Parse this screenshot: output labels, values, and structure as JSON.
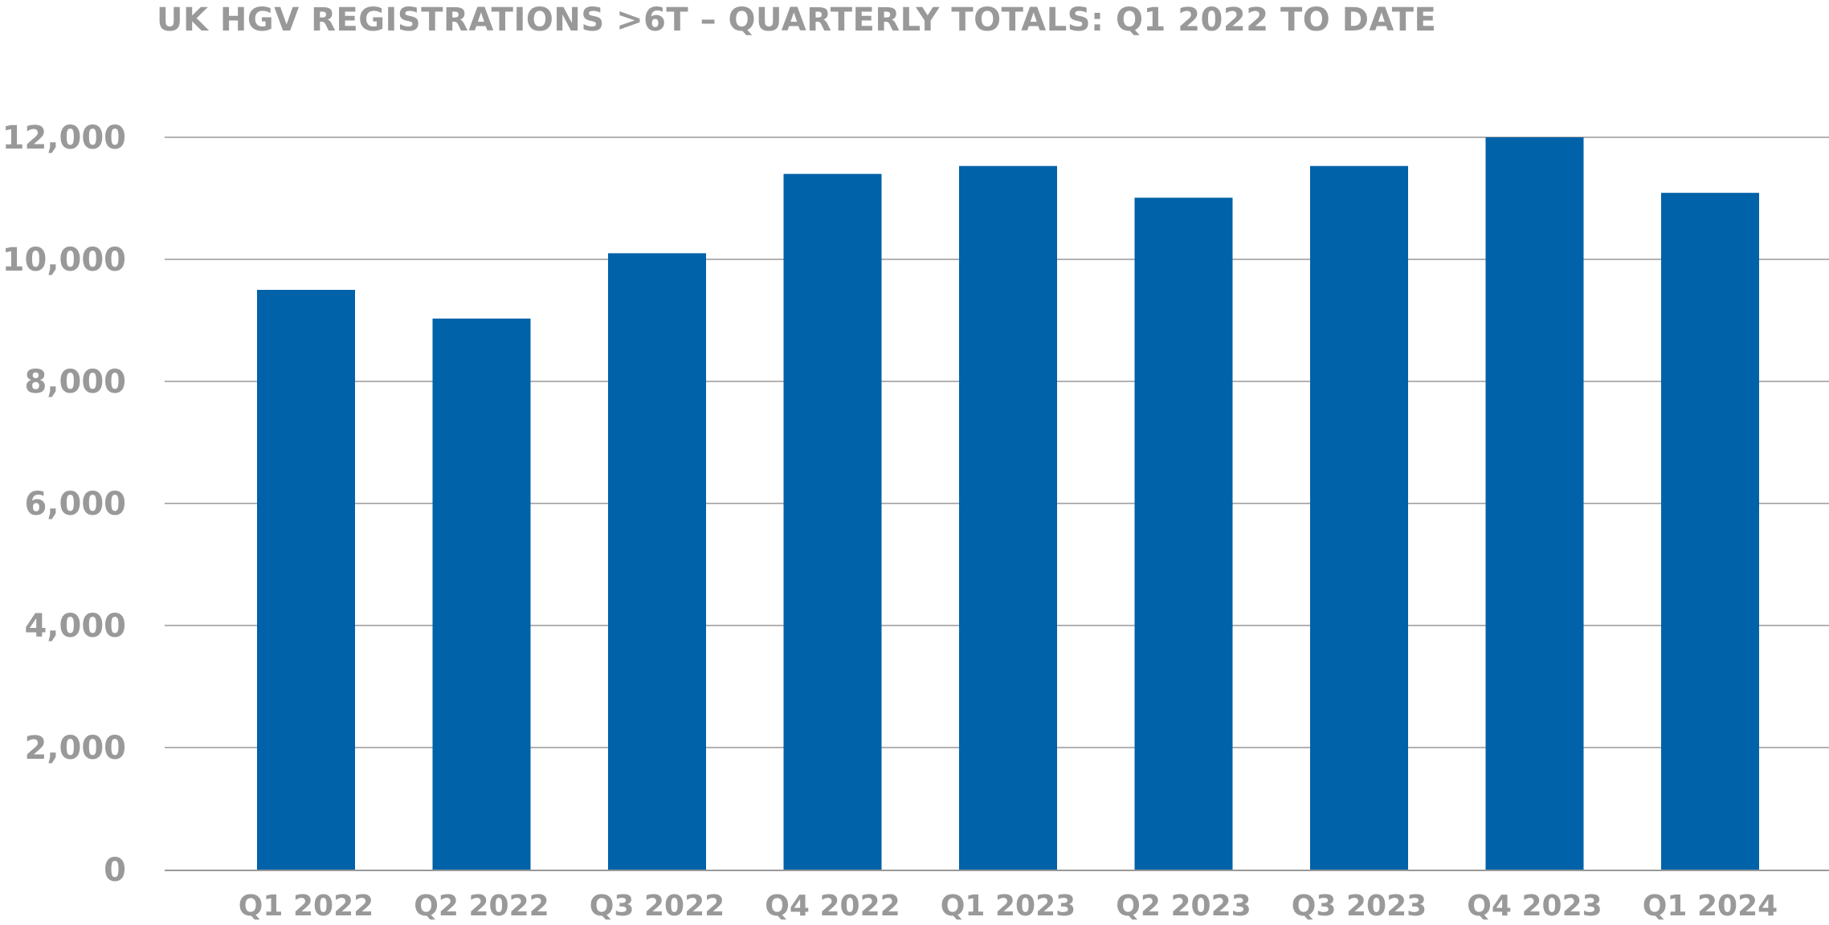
{
  "chart_data": {
    "type": "bar",
    "title": "UK HGV REGISTRATIONS >6T – QUARTERLY TOTALS: Q1 2022 TO DATE",
    "xlabel": "",
    "ylabel": "",
    "categories": [
      "Q1 2022",
      "Q2 2022",
      "Q3 2022",
      "Q4 2022",
      "Q1 2023",
      "Q2 2023",
      "Q3 2023",
      "Q4 2023",
      "Q1 2024"
    ],
    "values": [
      9500,
      9030,
      10100,
      11400,
      11530,
      11010,
      11530,
      12000,
      11090
    ],
    "ylim": [
      0,
      12000
    ],
    "yticks": [
      0,
      2000,
      4000,
      6000,
      8000,
      10000,
      12000
    ],
    "ytick_labels": [
      "0",
      "2,000",
      "4,000",
      "6,000",
      "8,000",
      "10,000",
      "12,000"
    ],
    "grid": true,
    "legend": "none",
    "bar_color": "#0062A8",
    "grid_color": "#999999",
    "label_color": "#999999"
  }
}
